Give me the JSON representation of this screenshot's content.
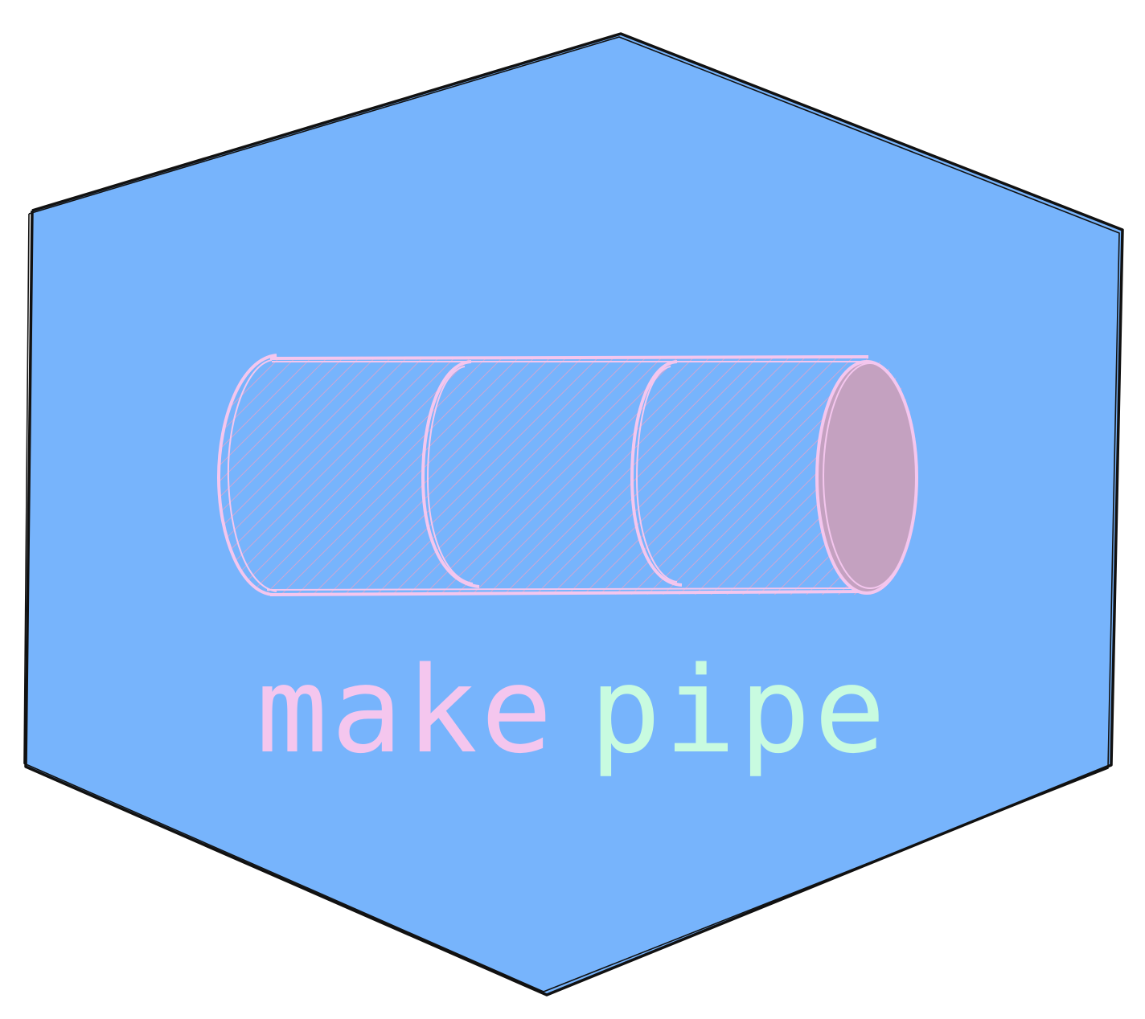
{
  "logo": {
    "word_1": "make",
    "word_2": "pipe"
  },
  "colors": {
    "hexagon_fill": "#77b4fc",
    "outline": "#111111",
    "pipe_stroke": "#f4c6ee",
    "pipe_hatch": "#e8a2c8",
    "pipe_end_fill": "#c4a1c0",
    "word_1": "#f4c6ee",
    "word_2": "#c8fbe0"
  },
  "icons": {
    "pipe": "pipe-icon",
    "hexagon": "hexagon-shape"
  }
}
